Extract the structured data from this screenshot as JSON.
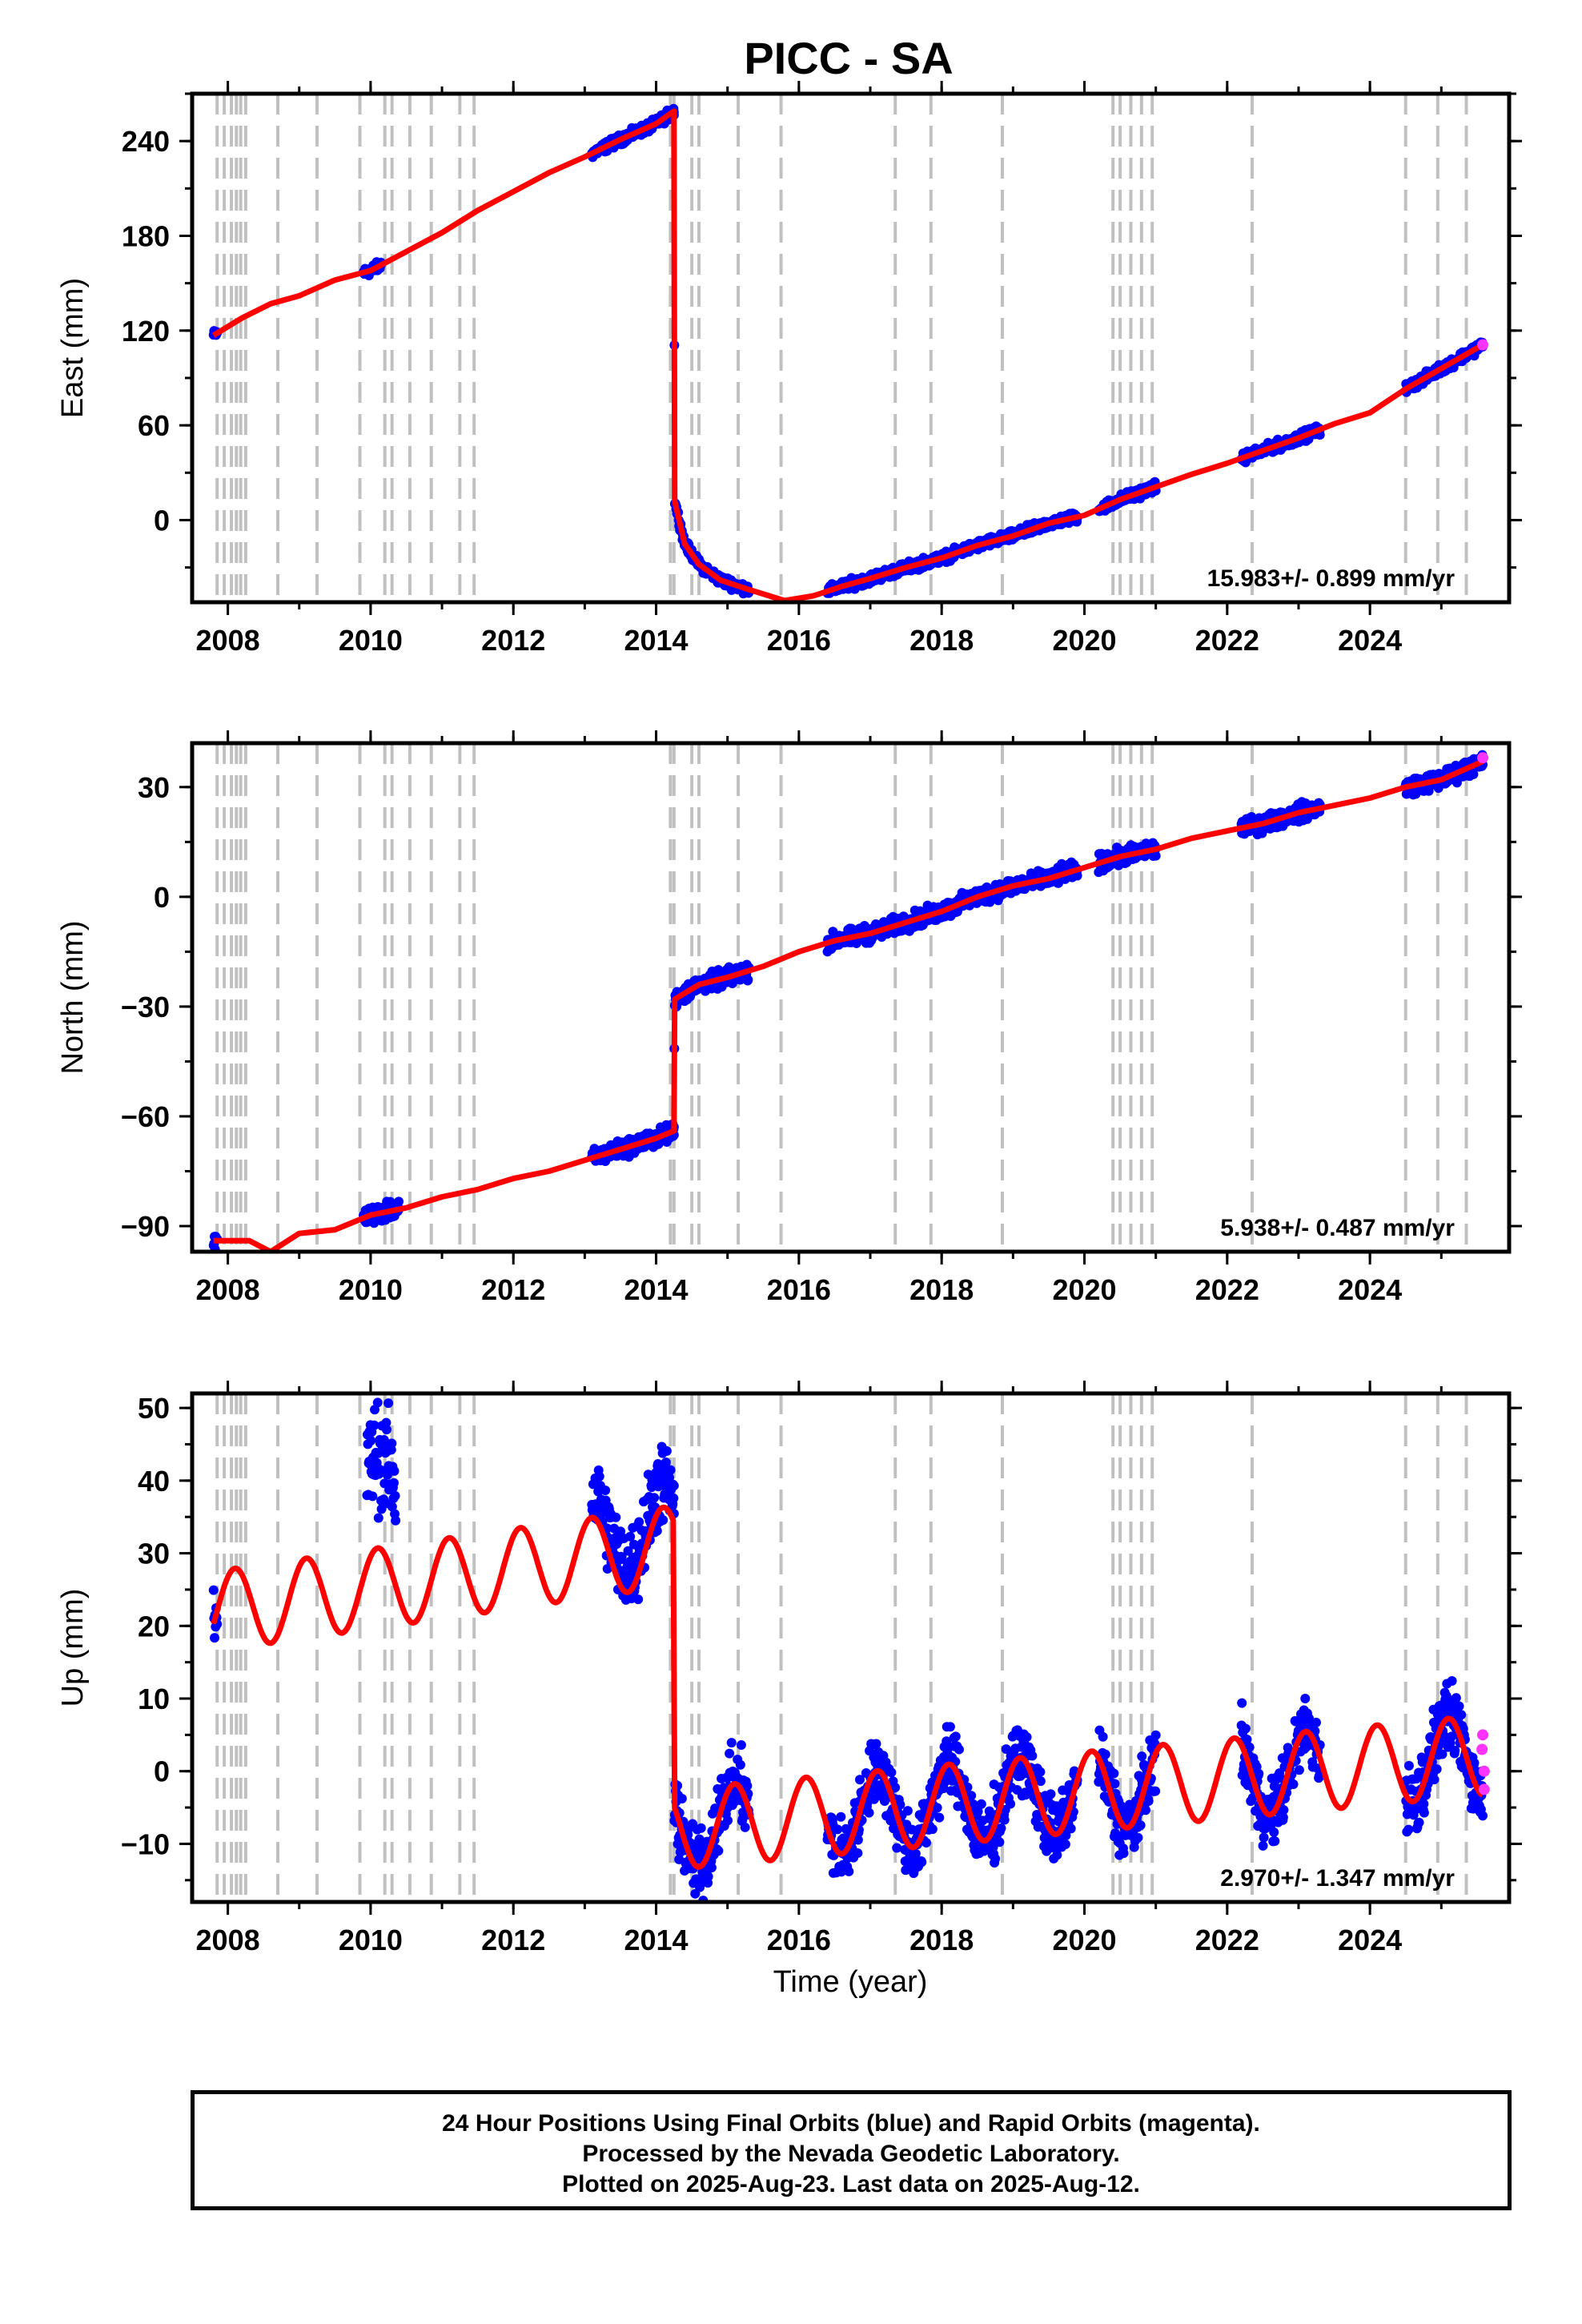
{
  "title": "PICC - SA",
  "xlabel": "Time (year)",
  "colors": {
    "final": "#0000ff",
    "rapid": "#ff33ff",
    "model": "#ff0000",
    "offset": "#c0c0c0"
  },
  "footer": {
    "line1": "24 Hour Positions Using Final Orbits (blue) and Rapid Orbits (magenta).",
    "line2": "Processed by the Nevada Geodetic Laboratory.",
    "line3": "Plotted on 2025-Aug-23. Last data on 2025-Aug-12."
  },
  "chart_data": [
    {
      "type": "scatter",
      "component": "east",
      "ylabel": "East (mm)",
      "xlim": [
        2007.5,
        2025.95
      ],
      "ylim": [
        -52,
        270
      ],
      "xticks": [
        2008,
        2010,
        2012,
        2014,
        2016,
        2018,
        2020,
        2022,
        2024
      ],
      "yticks": [
        0,
        60,
        120,
        180,
        240
      ],
      "rate_label": "15.983+/- 0.899 mm/yr",
      "offsets": [
        2007.85,
        2007.95,
        2008.05,
        2008.12,
        2008.18,
        2008.25,
        2008.7,
        2009.25,
        2009.85,
        2010.2,
        2010.3,
        2010.55,
        2010.85,
        2011.25,
        2011.45,
        2014.2,
        2014.25,
        2014.5,
        2014.6,
        2015.15,
        2015.75,
        2017.35,
        2017.85,
        2018.85,
        2020.4,
        2020.5,
        2020.65,
        2020.8,
        2020.95,
        2022.35,
        2024.5,
        2024.95,
        2025.35
      ],
      "model": [
        [
          2007.8,
          117
        ],
        [
          2008.2,
          128
        ],
        [
          2008.6,
          137
        ],
        [
          2009.0,
          142
        ],
        [
          2009.5,
          152
        ],
        [
          2010.0,
          158
        ],
        [
          2010.5,
          170
        ],
        [
          2011.0,
          182
        ],
        [
          2011.5,
          196
        ],
        [
          2012.0,
          208
        ],
        [
          2012.5,
          220
        ],
        [
          2013.0,
          230
        ],
        [
          2013.5,
          241
        ],
        [
          2014.0,
          251
        ],
        [
          2014.25,
          259
        ],
        [
          2014.26,
          12
        ],
        [
          2014.4,
          -15
        ],
        [
          2014.6,
          -28
        ],
        [
          2014.9,
          -38
        ],
        [
          2015.3,
          -44
        ],
        [
          2015.8,
          -51
        ],
        [
          2016.2,
          -48
        ],
        [
          2016.6,
          -42
        ],
        [
          2017.0,
          -37
        ],
        [
          2017.5,
          -30
        ],
        [
          2018.0,
          -24
        ],
        [
          2018.5,
          -16
        ],
        [
          2019.0,
          -10
        ],
        [
          2019.5,
          -2
        ],
        [
          2020.0,
          3
        ],
        [
          2020.5,
          13
        ],
        [
          2021.0,
          21
        ],
        [
          2021.5,
          29
        ],
        [
          2022.0,
          36
        ],
        [
          2022.5,
          44
        ],
        [
          2023.0,
          52
        ],
        [
          2023.5,
          61
        ],
        [
          2024.0,
          68
        ],
        [
          2024.5,
          83
        ],
        [
          2025.0,
          96
        ],
        [
          2025.58,
          111
        ]
      ],
      "final_segments": [
        [
          2007.8,
          2007.85
        ],
        [
          2009.9,
          2010.15
        ],
        [
          2013.1,
          2014.25
        ],
        [
          2014.25,
          2015.3
        ],
        [
          2016.4,
          2019.9
        ],
        [
          2020.2,
          2021.0
        ],
        [
          2022.2,
          2023.3
        ],
        [
          2024.5,
          2025.58
        ]
      ],
      "rapid_points": [
        [
          2025.58,
          111
        ]
      ]
    },
    {
      "type": "scatter",
      "component": "north",
      "ylabel": "North (mm)",
      "xlim": [
        2007.5,
        2025.95
      ],
      "ylim": [
        -97,
        42
      ],
      "xticks": [
        2008,
        2010,
        2012,
        2014,
        2016,
        2018,
        2020,
        2022,
        2024
      ],
      "yticks": [
        -90,
        -60,
        -30,
        0,
        30
      ],
      "rate_label": "5.938+/- 0.487 mm/yr",
      "offsets": [
        2007.85,
        2007.95,
        2008.05,
        2008.12,
        2008.18,
        2008.25,
        2008.7,
        2009.25,
        2009.85,
        2010.2,
        2010.3,
        2010.55,
        2010.85,
        2011.25,
        2011.45,
        2014.2,
        2014.25,
        2014.5,
        2014.6,
        2015.15,
        2015.75,
        2017.35,
        2017.85,
        2018.85,
        2020.4,
        2020.5,
        2020.65,
        2020.8,
        2020.95,
        2022.35,
        2024.5,
        2024.95,
        2025.35
      ],
      "model": [
        [
          2007.8,
          -94
        ],
        [
          2008.3,
          -94
        ],
        [
          2008.6,
          -97
        ],
        [
          2009.0,
          -92
        ],
        [
          2009.5,
          -91
        ],
        [
          2010.0,
          -87
        ],
        [
          2010.5,
          -85
        ],
        [
          2011.0,
          -82
        ],
        [
          2011.5,
          -80
        ],
        [
          2012.0,
          -77
        ],
        [
          2012.5,
          -75
        ],
        [
          2013.0,
          -72
        ],
        [
          2013.5,
          -69
        ],
        [
          2014.0,
          -66
        ],
        [
          2014.25,
          -64
        ],
        [
          2014.26,
          -28
        ],
        [
          2014.6,
          -24
        ],
        [
          2015.0,
          -22
        ],
        [
          2015.5,
          -19
        ],
        [
          2016.0,
          -15
        ],
        [
          2016.5,
          -12
        ],
        [
          2017.0,
          -10
        ],
        [
          2017.5,
          -7
        ],
        [
          2018.0,
          -4
        ],
        [
          2018.5,
          0
        ],
        [
          2019.0,
          3
        ],
        [
          2019.5,
          5
        ],
        [
          2020.0,
          8
        ],
        [
          2020.5,
          11
        ],
        [
          2021.0,
          13
        ],
        [
          2021.5,
          16
        ],
        [
          2022.0,
          18
        ],
        [
          2022.5,
          20
        ],
        [
          2023.0,
          23
        ],
        [
          2023.5,
          25
        ],
        [
          2024.0,
          27
        ],
        [
          2024.5,
          30
        ],
        [
          2025.0,
          32
        ],
        [
          2025.58,
          37
        ]
      ],
      "final_segments": [
        [
          2007.8,
          2007.85
        ],
        [
          2009.9,
          2010.4
        ],
        [
          2013.1,
          2014.25
        ],
        [
          2014.25,
          2015.3
        ],
        [
          2016.4,
          2019.9
        ],
        [
          2020.2,
          2021.0
        ],
        [
          2022.2,
          2023.3
        ],
        [
          2024.5,
          2025.58
        ]
      ],
      "rapid_points": [
        [
          2025.58,
          38
        ]
      ]
    },
    {
      "type": "scatter",
      "component": "up",
      "ylabel": "Up (mm)",
      "xlim": [
        2007.5,
        2025.95
      ],
      "ylim": [
        -18,
        52
      ],
      "xticks": [
        2008,
        2010,
        2012,
        2014,
        2016,
        2018,
        2020,
        2022,
        2024
      ],
      "yticks": [
        -10,
        0,
        10,
        20,
        30,
        40,
        50
      ],
      "rate_label": "2.970+/- 1.347 mm/yr",
      "offsets": [
        2007.85,
        2007.95,
        2008.05,
        2008.12,
        2008.18,
        2008.25,
        2008.7,
        2009.25,
        2009.85,
        2010.2,
        2010.3,
        2010.55,
        2010.85,
        2011.25,
        2011.45,
        2014.2,
        2014.25,
        2014.5,
        2014.6,
        2015.15,
        2015.75,
        2017.35,
        2017.85,
        2018.85,
        2020.4,
        2020.5,
        2020.65,
        2020.8,
        2020.95,
        2022.35,
        2024.5,
        2024.95,
        2025.35
      ],
      "model_pre": {
        "x0": 2007.8,
        "x1": 2014.25,
        "base": 22,
        "trend": 1.4,
        "amp": 5.5,
        "phase": 0.85
      },
      "model_post": {
        "x0": 2014.26,
        "x1": 2025.58,
        "base": -8,
        "trend": 0.9,
        "amp": 5.5,
        "phase": 0.85
      },
      "final_segments": [
        [
          2007.8,
          2007.85
        ],
        [
          2009.95,
          2010.35
        ],
        [
          2013.1,
          2014.25
        ],
        [
          2014.25,
          2015.3
        ],
        [
          2016.4,
          2019.9
        ],
        [
          2020.2,
          2021.0
        ],
        [
          2022.2,
          2023.3
        ],
        [
          2024.5,
          2025.58
        ]
      ],
      "rapid_points": [
        [
          2025.58,
          5
        ],
        [
          2025.6,
          0
        ],
        [
          2025.6,
          -2.5
        ],
        [
          2025.57,
          3
        ]
      ]
    }
  ]
}
